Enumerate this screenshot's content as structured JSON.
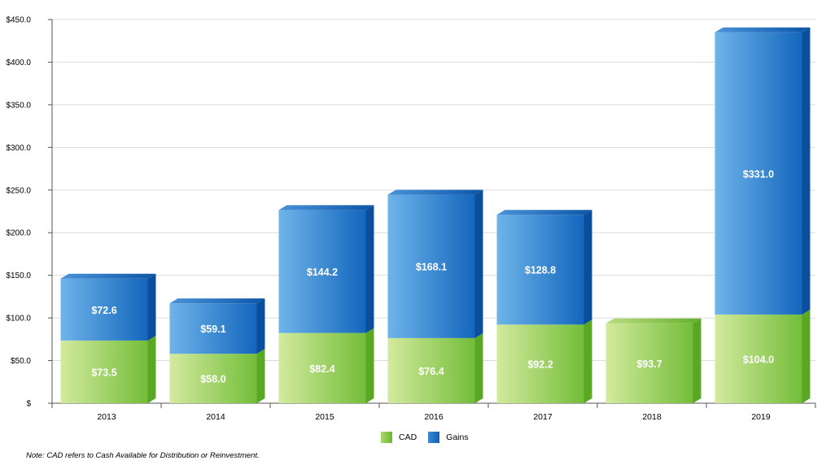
{
  "chart_data": {
    "type": "bar",
    "stacked": true,
    "categories": [
      "2013",
      "2014",
      "2015",
      "2016",
      "2017",
      "2018",
      "2019"
    ],
    "series": [
      {
        "name": "CAD",
        "values": [
          73.5,
          58.0,
          82.4,
          76.4,
          92.2,
          93.7,
          104.0
        ],
        "labels": [
          "$73.5",
          "$58.0",
          "$82.4",
          "$76.4",
          "$92.2",
          "$93.7",
          "$104.0"
        ]
      },
      {
        "name": "Gains",
        "values": [
          72.6,
          59.1,
          144.2,
          168.1,
          128.8,
          0,
          331.0
        ],
        "labels": [
          "$72.6",
          "$59.1",
          "$144.2",
          "$168.1",
          "$128.8",
          "",
          "$331.0"
        ]
      }
    ],
    "ylim": [
      0,
      450
    ],
    "yticks": [
      0,
      50,
      100,
      150,
      200,
      250,
      300,
      350,
      400,
      450
    ],
    "ytick_labels": [
      "$",
      "$50.0",
      "$100.0",
      "$150.0",
      "$200.0",
      "$250.0",
      "$300.0",
      "$350.0",
      "$400.0",
      "$450.0"
    ],
    "grid": true,
    "legend_position": "bottom-center",
    "colors": {
      "CAD": "#7cc242",
      "Gains": "#1c6fc2"
    }
  },
  "legend": {
    "cad_label": "CAD",
    "gains_label": "Gains"
  },
  "note": "Note: CAD refers to Cash Available for Distribution or Reinvestment."
}
